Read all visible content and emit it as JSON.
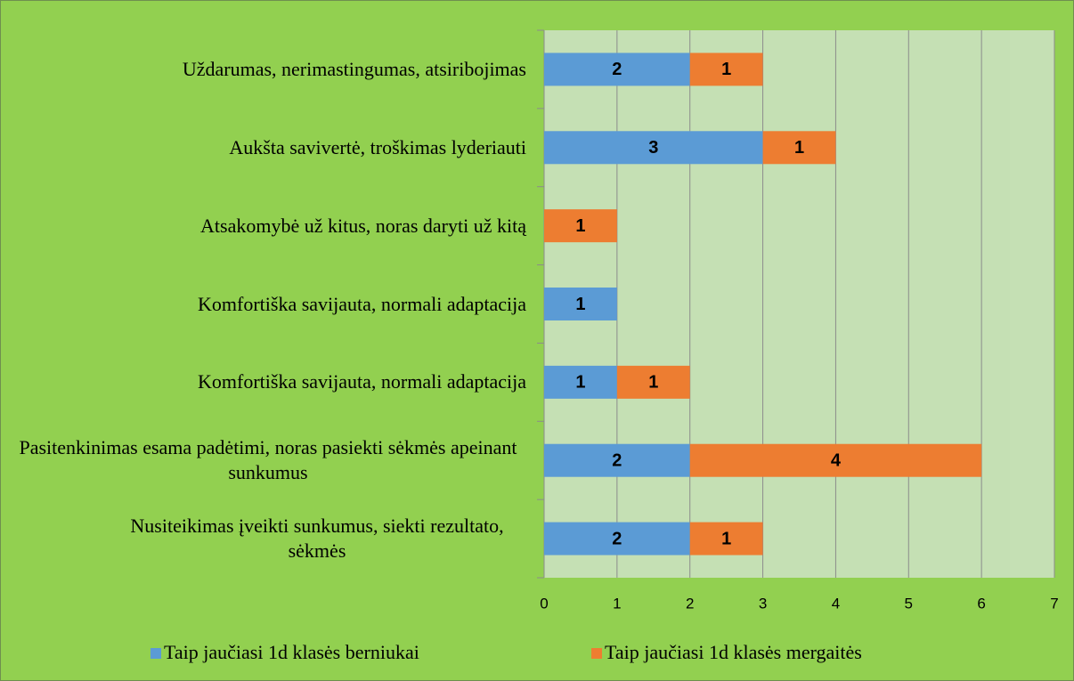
{
  "chart_data": {
    "type": "stacked_barh",
    "categories": [
      "Uždarumas, nerimastingumas, atsiribojimas",
      "Aukšta savivertė, troškimas lyderiauti",
      "Atsakomybė už kitus, noras daryti už kitą",
      "Komfortiška savijauta, normali adaptacija",
      "Komfortiška savijauta, normali adaptacija",
      "Pasitenkinimas esama padėtimi, noras pasiekti sėkmės apeinant sunkumus",
      "Nusiteikimas įveikti sunkumus, siekti rezultato, sėkmės"
    ],
    "series": [
      {
        "name": "Taip jaučiasi 1d klasės berniukai",
        "color": "#5b9bd5",
        "values": [
          2,
          3,
          null,
          1,
          1,
          2,
          2
        ]
      },
      {
        "name": "Taip jaučiasi 1d klasės mergaitės",
        "color": "#ed7d31",
        "values": [
          1,
          1,
          1,
          null,
          1,
          4,
          1
        ]
      }
    ],
    "xlim": [
      0,
      7
    ],
    "xticks": [
      0,
      1,
      2,
      3,
      4,
      5,
      6,
      7
    ],
    "grid": true,
    "legend": "bottom"
  }
}
